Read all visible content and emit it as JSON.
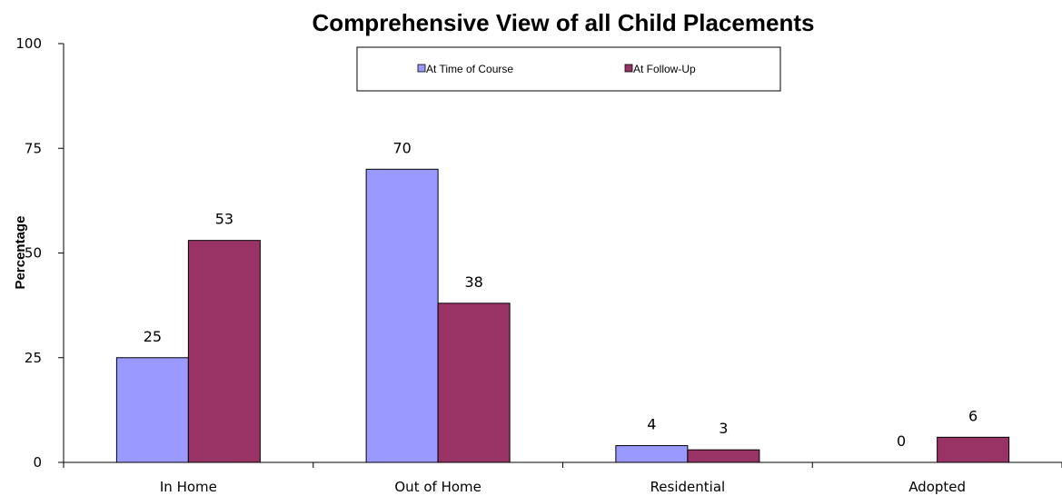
{
  "chart_data": {
    "type": "bar",
    "title": "Comprehensive View of all Child Placements",
    "xlabel": "",
    "ylabel": "Percentage",
    "ylim": [
      0,
      100
    ],
    "yticks": [
      "0",
      "25",
      "50",
      "75",
      "100"
    ],
    "yticks_values": [
      0,
      25,
      50,
      75,
      100
    ],
    "categories": [
      "In Home",
      "Out of Home",
      "Residential",
      "Adopted"
    ],
    "series": [
      {
        "name": "At Time of Course",
        "values": [
          25,
          70,
          4,
          0
        ],
        "color": "#9999ff"
      },
      {
        "name": "At Follow-Up",
        "values": [
          53,
          38,
          3,
          6
        ],
        "color": "#993366"
      }
    ],
    "grid": false,
    "legend_position": "top-center"
  }
}
